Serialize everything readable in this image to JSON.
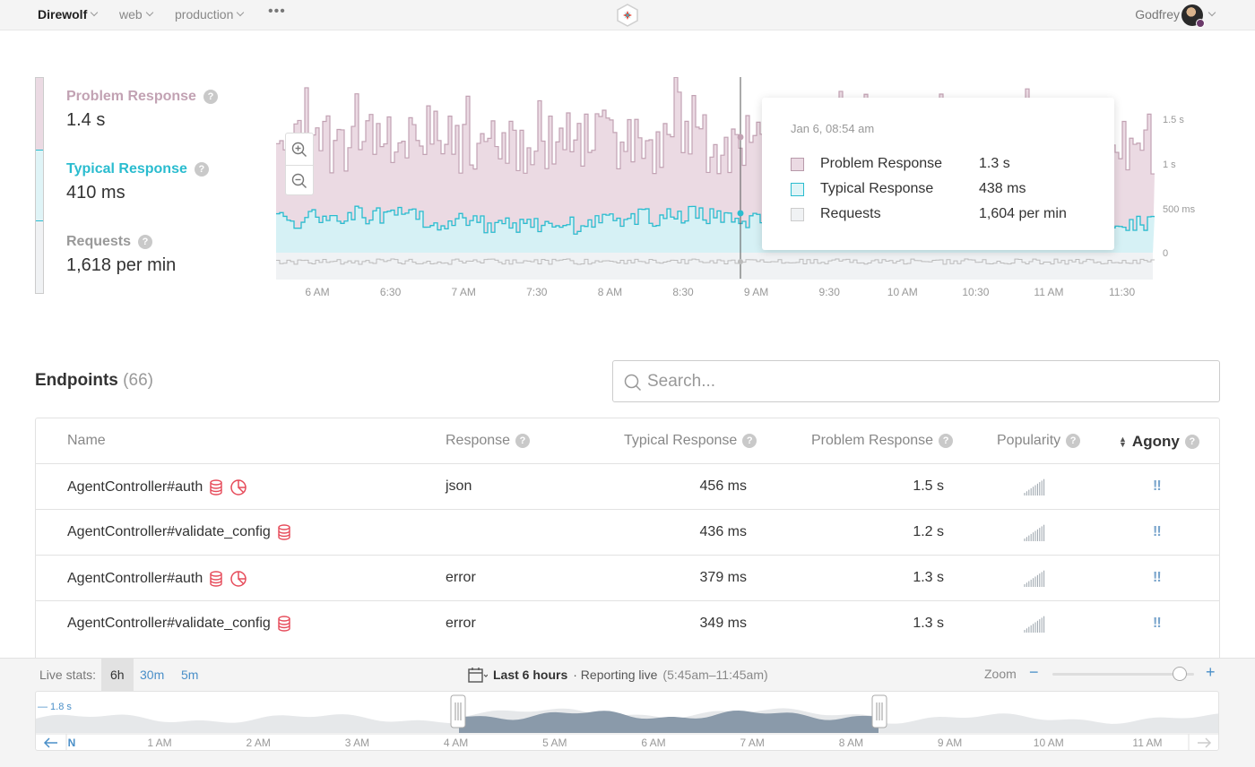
{
  "topbar": {
    "app": "Direwolf",
    "crumbs": [
      "web",
      "production"
    ],
    "more": "•••",
    "user": "Godfrey"
  },
  "metrics": {
    "problem": {
      "label": "Problem Response",
      "value": "1.4 s",
      "color": "#c2a2b3"
    },
    "typical": {
      "label": "Typical Response",
      "value": "410 ms",
      "color": "#2abccf"
    },
    "requests": {
      "label": "Requests",
      "value": "1,618 per min",
      "color": "#999999"
    }
  },
  "chart_data": {
    "type": "area",
    "x_ticks": [
      "6 AM",
      "6:30",
      "7 AM",
      "7:30",
      "8 AM",
      "8:30",
      "9 AM",
      "9:30",
      "10 AM",
      "10:30",
      "11 AM",
      "11:30"
    ],
    "y_ticks": [
      "1.5 s",
      "1 s",
      "500 ms",
      "0"
    ],
    "series": [
      {
        "name": "Problem Response",
        "color": "#c2a2b3"
      },
      {
        "name": "Typical Response",
        "color": "#2abccf"
      },
      {
        "name": "Requests",
        "color": "#bbbbbb"
      }
    ]
  },
  "tooltip": {
    "time": "Jan 6, 08:54 am",
    "rows": [
      {
        "label": "Problem Response",
        "value": "1.3 s"
      },
      {
        "label": "Typical Response",
        "value": "438 ms"
      },
      {
        "label": "Requests",
        "value": "1,604 per min"
      }
    ]
  },
  "endpoints": {
    "title": "Endpoints",
    "count": "(66)",
    "search_placeholder": "Search...",
    "columns": {
      "name": "Name",
      "response": "Response",
      "typical": "Typical Response",
      "problem": "Problem Response",
      "popularity": "Popularity",
      "agony": "Agony"
    },
    "rows": [
      {
        "name": "AgentController#auth",
        "response": "json",
        "typical": "456 ms",
        "problem": "1.5 s",
        "agony": "!!",
        "db": true,
        "chart": true
      },
      {
        "name": "AgentController#validate_config",
        "response": "",
        "typical": "436 ms",
        "problem": "1.2 s",
        "agony": "!!",
        "db": true,
        "chart": false
      },
      {
        "name": "AgentController#auth",
        "response": "error",
        "typical": "379 ms",
        "problem": "1.3 s",
        "agony": "!!",
        "db": true,
        "chart": true
      },
      {
        "name": "AgentController#validate_config",
        "response": "error",
        "typical": "349 ms",
        "problem": "1.3 s",
        "agony": "!!",
        "db": true,
        "chart": false
      }
    ]
  },
  "bottombar": {
    "live_label": "Live stats:",
    "ranges": [
      "6h",
      "30m",
      "5m"
    ],
    "period": "Last 6 hours",
    "status": "· Reporting live",
    "window": "(5:45am–11:45am)",
    "zoom_label": "Zoom",
    "zoom_minus": "−",
    "zoom_plus": "+",
    "overview_max": "— 1.8 s",
    "overview_ticks": [
      "N",
      "1 AM",
      "2 AM",
      "3 AM",
      "4 AM",
      "5 AM",
      "6 AM",
      "7 AM",
      "8 AM",
      "9 AM",
      "10 AM",
      "11 AM"
    ]
  }
}
